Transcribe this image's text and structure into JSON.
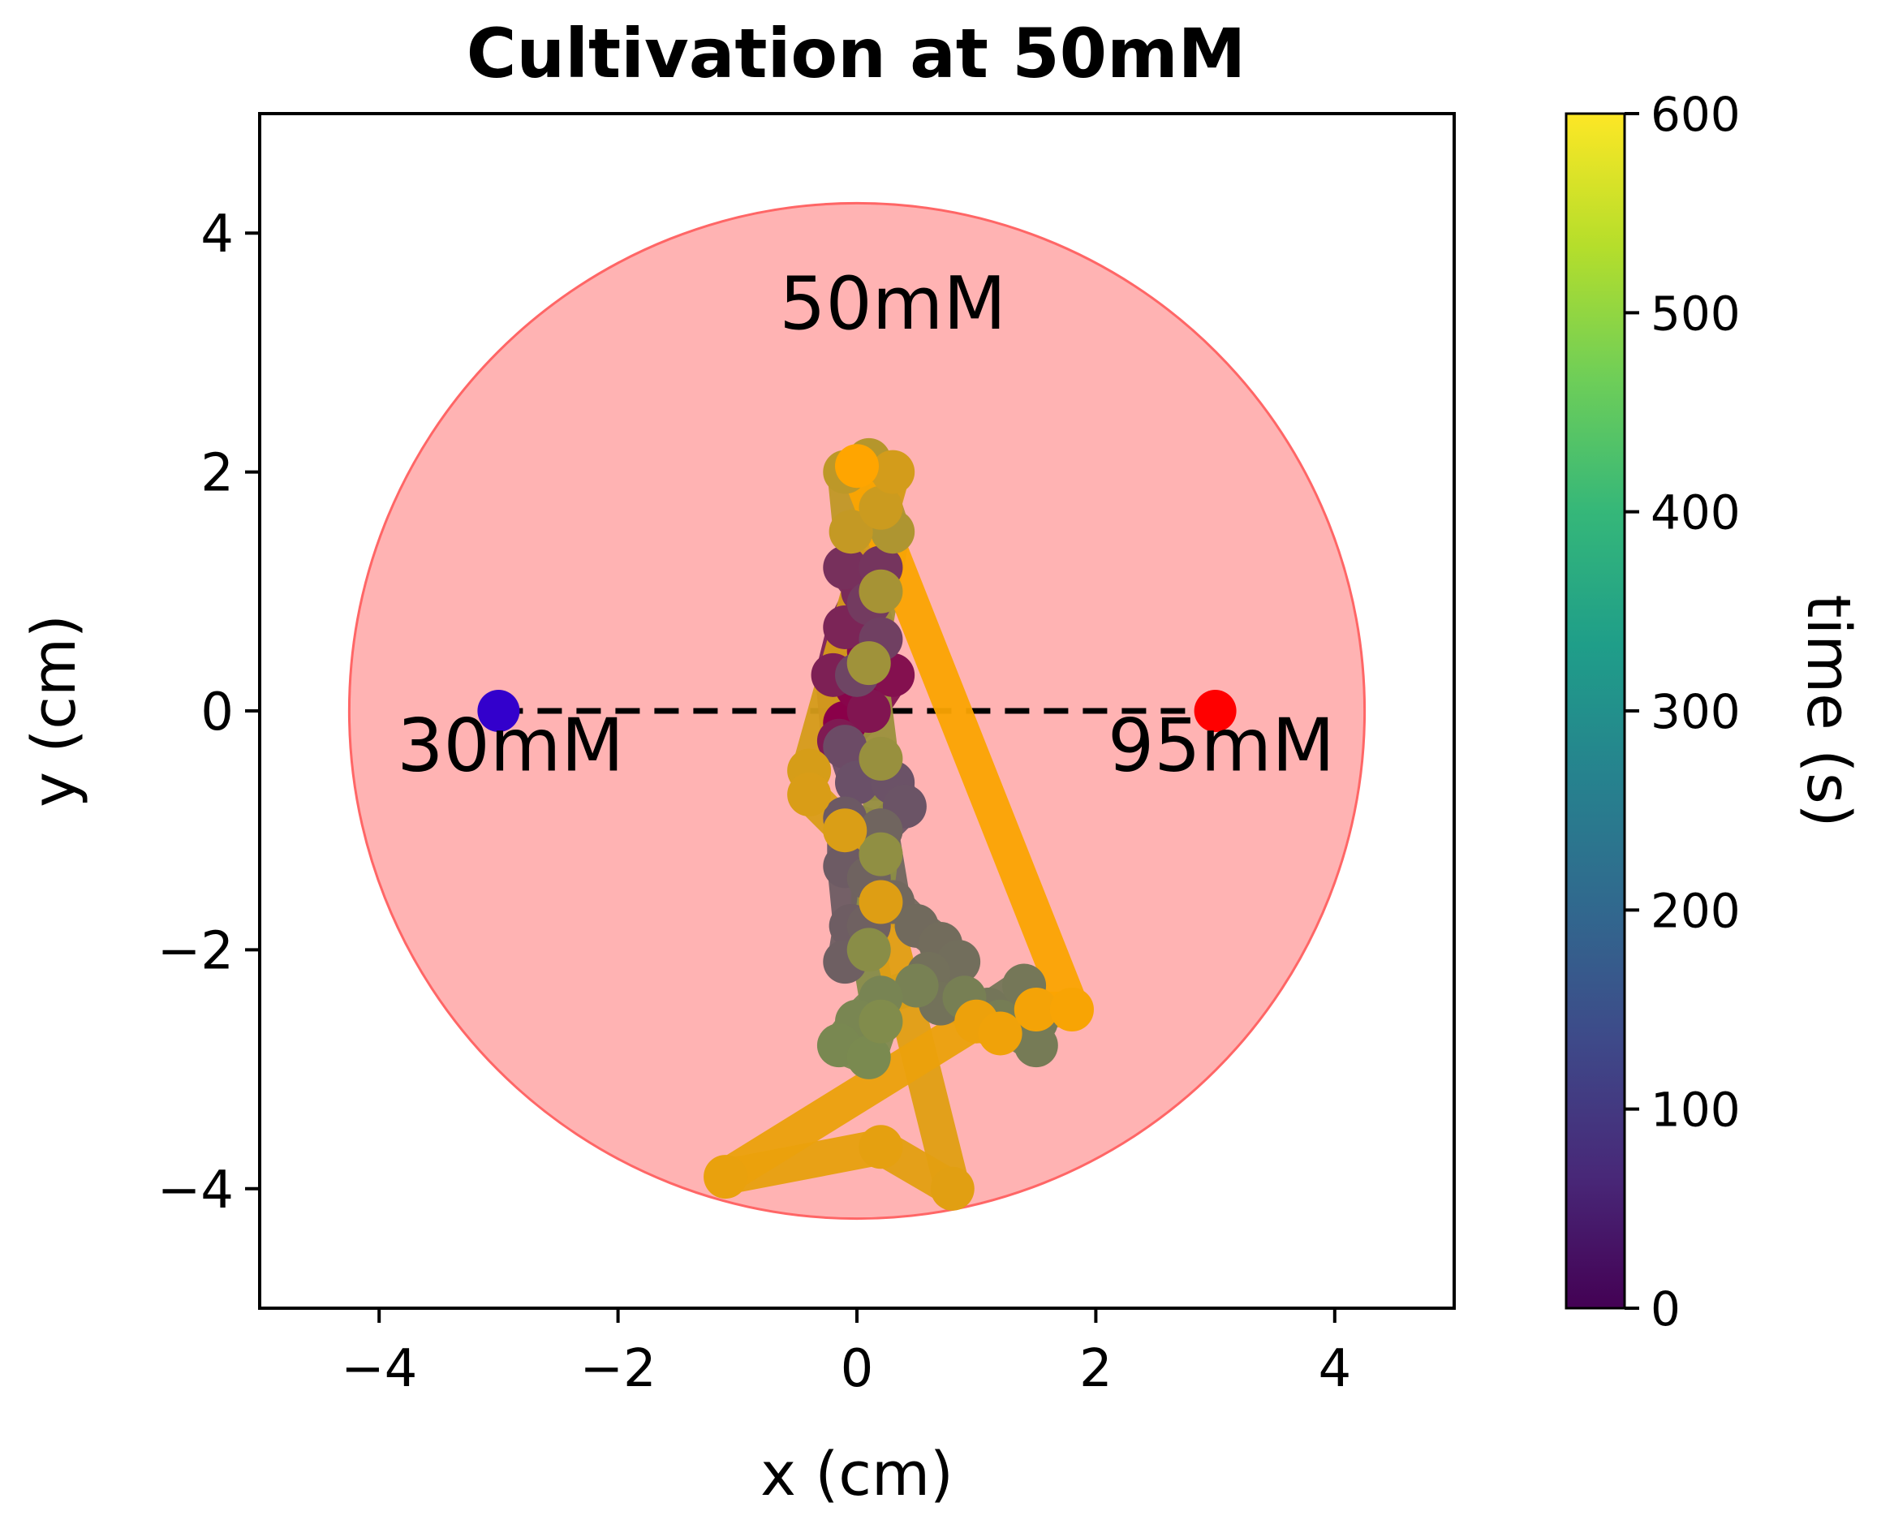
{
  "chart_data": {
    "type": "scatter",
    "title": "Cultivation at 50mM",
    "xlabel": "x (cm)",
    "ylabel": "y (cm)",
    "xlim": [
      -5,
      5
    ],
    "ylim": [
      -5,
      5
    ],
    "xticks": [
      {
        "value": -4,
        "label": "−4"
      },
      {
        "value": -2,
        "label": "−2"
      },
      {
        "value": 0,
        "label": "0"
      },
      {
        "value": 2,
        "label": "2"
      },
      {
        "value": 4,
        "label": "4"
      }
    ],
    "yticks": [
      {
        "value": -4,
        "label": "−4"
      },
      {
        "value": -2,
        "label": "−2"
      },
      {
        "value": 0,
        "label": "0"
      },
      {
        "value": 2,
        "label": "2"
      },
      {
        "value": 4,
        "label": "4"
      }
    ],
    "grid": false,
    "dish": {
      "center": [
        0,
        0
      ],
      "radius": 4.25,
      "fill": "#ff9999",
      "edge": "#ff6666",
      "label": "50mM"
    },
    "endpoints": [
      {
        "x": -3,
        "y": 0,
        "label": "30mM",
        "color": "#3300cc"
      },
      {
        "x": 3,
        "y": 0,
        "label": "95mM",
        "color": "#ff0000"
      }
    ],
    "dashed_line": {
      "x": [
        -3,
        3
      ],
      "y": [
        0,
        0
      ],
      "color": "#000000"
    },
    "annotations": [
      {
        "text": "50mM",
        "x": 0.3,
        "y": 3.2
      },
      {
        "text": "30mM",
        "x": -2.9,
        "y": -0.5
      },
      {
        "text": "95mM",
        "x": 3.05,
        "y": -0.5
      }
    ],
    "colorbar": {
      "label": "time (s)",
      "range": [
        0,
        600
      ],
      "ticks": [
        0,
        100,
        200,
        300,
        400,
        500,
        600
      ],
      "colormap": [
        "#440154",
        "#482878",
        "#3e4989",
        "#31688e",
        "#26828e",
        "#1f9e89",
        "#35b779",
        "#6ece58",
        "#b5de2b",
        "#fde725"
      ]
    },
    "trajectory_colors": {
      "start": "#8a0049",
      "mid": "#6a5068",
      "late": "#7a8a50",
      "end": "#ffa500"
    },
    "trajectory": [
      {
        "x": -0.1,
        "y": -0.1,
        "t": 0
      },
      {
        "x": 0.0,
        "y": 0.2,
        "t": 10
      },
      {
        "x": 0.1,
        "y": 0.5,
        "t": 20
      },
      {
        "x": 0.3,
        "y": 0.3,
        "t": 30
      },
      {
        "x": 0.1,
        "y": 0.0,
        "t": 40
      },
      {
        "x": -0.15,
        "y": -0.25,
        "t": 50
      },
      {
        "x": -0.2,
        "y": 0.3,
        "t": 60
      },
      {
        "x": -0.1,
        "y": 0.7,
        "t": 70
      },
      {
        "x": 0.05,
        "y": 1.0,
        "t": 80
      },
      {
        "x": -0.1,
        "y": 1.2,
        "t": 90
      },
      {
        "x": 0.2,
        "y": 1.2,
        "t": 100
      },
      {
        "x": 0.1,
        "y": 0.9,
        "t": 110
      },
      {
        "x": 0.2,
        "y": 0.6,
        "t": 120
      },
      {
        "x": 0.0,
        "y": 0.3,
        "t": 130
      },
      {
        "x": -0.1,
        "y": -0.3,
        "t": 140
      },
      {
        "x": 0.0,
        "y": -0.6,
        "t": 150
      },
      {
        "x": 0.3,
        "y": -0.6,
        "t": 160
      },
      {
        "x": 0.4,
        "y": -0.8,
        "t": 170
      },
      {
        "x": 0.2,
        "y": -1.0,
        "t": 180
      },
      {
        "x": -0.1,
        "y": -0.9,
        "t": 190
      },
      {
        "x": -0.1,
        "y": -1.3,
        "t": 200
      },
      {
        "x": -0.05,
        "y": -1.8,
        "t": 210
      },
      {
        "x": -0.1,
        "y": -2.1,
        "t": 220
      },
      {
        "x": 0.1,
        "y": -1.8,
        "t": 230
      },
      {
        "x": 0.1,
        "y": -1.4,
        "t": 240
      },
      {
        "x": 0.2,
        "y": -1.0,
        "t": 250
      },
      {
        "x": 0.3,
        "y": -1.6,
        "t": 260
      },
      {
        "x": 0.5,
        "y": -1.8,
        "t": 270
      },
      {
        "x": 0.7,
        "y": -1.95,
        "t": 280
      },
      {
        "x": 0.85,
        "y": -2.1,
        "t": 290
      },
      {
        "x": 0.6,
        "y": -2.2,
        "t": 300
      },
      {
        "x": 0.7,
        "y": -2.45,
        "t": 310
      },
      {
        "x": 1.1,
        "y": -2.5,
        "t": 320
      },
      {
        "x": 1.4,
        "y": -2.3,
        "t": 330
      },
      {
        "x": 1.5,
        "y": -2.6,
        "t": 340
      },
      {
        "x": 1.5,
        "y": -2.8,
        "t": 350
      },
      {
        "x": 1.2,
        "y": -2.6,
        "t": 360
      },
      {
        "x": 0.9,
        "y": -2.4,
        "t": 370
      },
      {
        "x": 0.5,
        "y": -2.3,
        "t": 380
      },
      {
        "x": 0.2,
        "y": -2.4,
        "t": 390
      },
      {
        "x": 0.0,
        "y": -2.6,
        "t": 400
      },
      {
        "x": -0.15,
        "y": -2.8,
        "t": 410
      },
      {
        "x": 0.1,
        "y": -2.9,
        "t": 420
      },
      {
        "x": 0.2,
        "y": -2.6,
        "t": 430
      },
      {
        "x": 0.1,
        "y": -2.0,
        "t": 440
      },
      {
        "x": 0.2,
        "y": -1.2,
        "t": 450
      },
      {
        "x": 0.2,
        "y": -0.4,
        "t": 460
      },
      {
        "x": 0.1,
        "y": 0.4,
        "t": 470
      },
      {
        "x": 0.2,
        "y": 1.0,
        "t": 480
      },
      {
        "x": 0.3,
        "y": 1.5,
        "t": 490
      },
      {
        "x": 0.1,
        "y": 2.1,
        "t": 500
      },
      {
        "x": -0.1,
        "y": 2.0,
        "t": 510
      },
      {
        "x": -0.05,
        "y": 1.5,
        "t": 520
      },
      {
        "x": 0.2,
        "y": 1.7,
        "t": 530
      },
      {
        "x": 0.3,
        "y": 2.0,
        "t": 540
      },
      {
        "x": -0.4,
        "y": -0.5,
        "t": 545
      },
      {
        "x": -0.4,
        "y": -0.7,
        "t": 548
      },
      {
        "x": -0.1,
        "y": -1.0,
        "t": 550
      },
      {
        "x": 0.2,
        "y": -1.6,
        "t": 555
      },
      {
        "x": 0.8,
        "y": -4.0,
        "t": 560
      },
      {
        "x": 0.2,
        "y": -3.65,
        "t": 565
      },
      {
        "x": -1.1,
        "y": -3.9,
        "t": 570
      },
      {
        "x": 1.0,
        "y": -2.6,
        "t": 575
      },
      {
        "x": 1.2,
        "y": -2.7,
        "t": 580
      },
      {
        "x": 1.5,
        "y": -2.5,
        "t": 585
      },
      {
        "x": 1.8,
        "y": -2.5,
        "t": 590
      },
      {
        "x": 0.0,
        "y": 2.05,
        "t": 600
      }
    ]
  }
}
